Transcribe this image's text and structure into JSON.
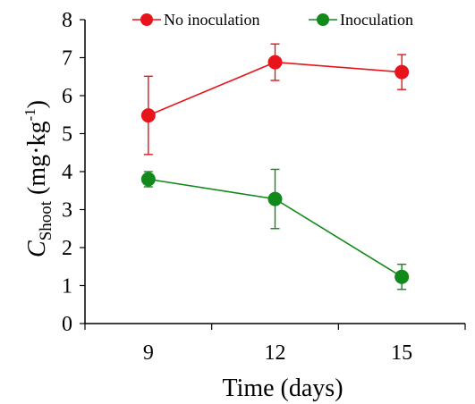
{
  "chart_data": {
    "type": "line",
    "x_categories": [
      "9",
      "12",
      "15"
    ],
    "xlabel": "Time (days)",
    "ylabel": {
      "symbol": "C",
      "subscript": "Shoot",
      "unit_prefix": " (mg·kg",
      "unit_sup": "-1",
      "unit_suffix": ")"
    },
    "ylim": [
      0,
      8
    ],
    "yticks": [
      "0",
      "1",
      "2",
      "3",
      "4",
      "5",
      "6",
      "7",
      "8"
    ],
    "grid": false,
    "legend_position": "top",
    "series": [
      {
        "name": "No inoculation",
        "color": "#e8141b",
        "values": [
          5.48,
          6.88,
          6.62
        ],
        "error": [
          1.03,
          0.48,
          0.46
        ]
      },
      {
        "name": "Inoculation",
        "color": "#12891b",
        "values": [
          3.8,
          3.28,
          1.23
        ],
        "error": [
          0.2,
          0.78,
          0.33
        ]
      }
    ]
  }
}
